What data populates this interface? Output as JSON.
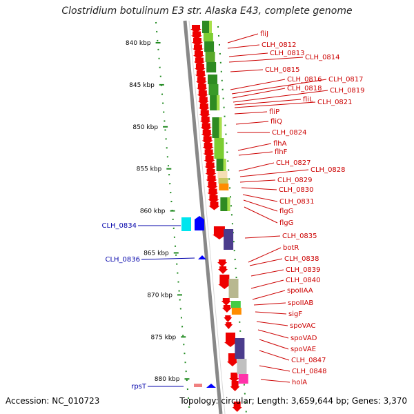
{
  "title": "Clostridium botulinum E3 str. Alaska E43, complete genome",
  "footer": {
    "accession": "Accession: NC_010723",
    "stats": "Topology: circular; Length: 3,659,644 bp; Genes: 3,370"
  },
  "colors": {
    "reverse_gene": "#ee0000",
    "left_gene_label": "#0000aa",
    "right_gene_label": "#cc0000",
    "tick": "#228b22",
    "backbone": "#888888"
  },
  "ruler": [
    {
      "label": "840 kbp",
      "kbp": 840
    },
    {
      "label": "845 kbp",
      "kbp": 845
    },
    {
      "label": "850 kbp",
      "kbp": 850
    },
    {
      "label": "855 kbp",
      "kbp": 855
    },
    {
      "label": "860 kbp",
      "kbp": 860
    },
    {
      "label": "865 kbp",
      "kbp": 865
    },
    {
      "label": "870 kbp",
      "kbp": 870
    },
    {
      "label": "875 kbp",
      "kbp": 875
    },
    {
      "label": "880 kbp",
      "kbp": 880
    }
  ],
  "left_labels": [
    "CLH_0834",
    "CLH_0836",
    "rpsT"
  ],
  "right_labels": [
    "fliJ",
    "CLH_0812",
    "CLH_0813",
    "CLH_0814",
    "CLH_0815",
    "CLH_0816",
    "CLH_0817",
    "CLH_0818",
    "CLH_0819",
    "fliL",
    "CLH_0821",
    "fliP",
    "fliQ",
    "CLH_0824",
    "flhA",
    "flhF",
    "CLH_0827",
    "CLH_0828",
    "CLH_0829",
    "CLH_0830",
    "CLH_0831",
    "flgG",
    "flgG",
    "CLH_0835",
    "botR",
    "CLH_0838",
    "CLH_0839",
    "CLH_0840",
    "spoIIAA",
    "spoIIAB",
    "sigF",
    "spoVAC",
    "spoVAD",
    "spoVAE",
    "CLH_0847",
    "CLH_0848",
    "holA"
  ]
}
